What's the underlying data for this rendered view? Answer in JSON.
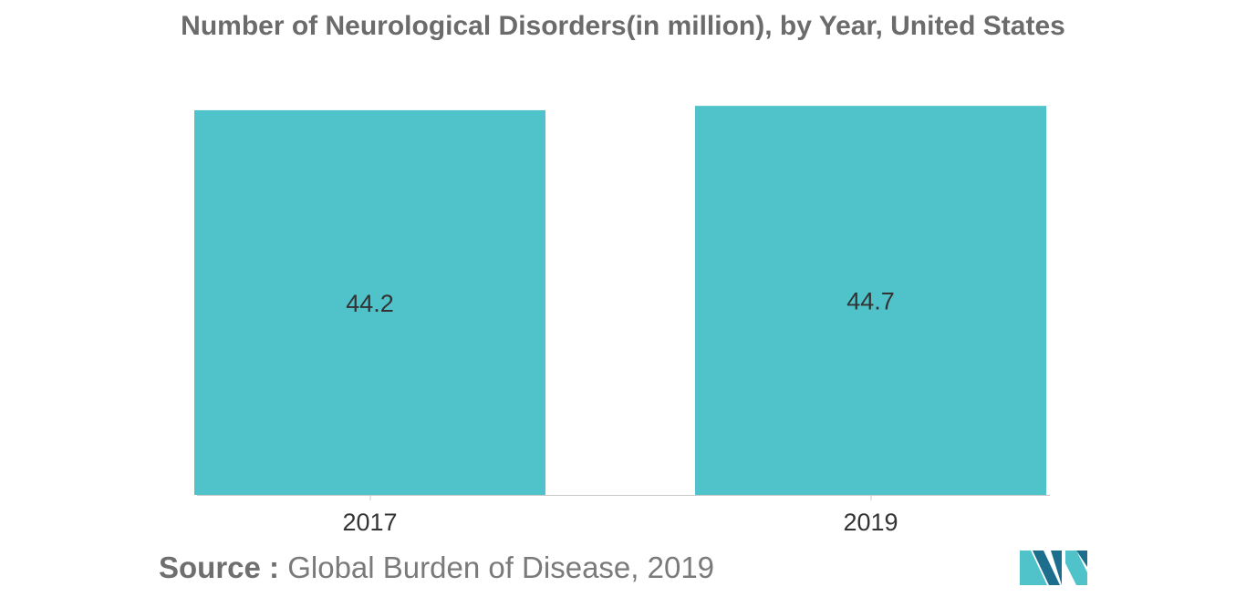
{
  "chart_data": {
    "type": "bar",
    "title": "Number of Neurological Disorders(in million), by Year, United States",
    "categories": [
      "2017",
      "2019"
    ],
    "values": [
      44.2,
      44.7
    ],
    "data_labels": [
      "44.2",
      "44.7"
    ],
    "xlabel": "",
    "ylabel": "",
    "ylim": [
      0,
      45
    ],
    "grid": false,
    "legend": "none",
    "bar_color": "#50c3ca",
    "axis_color": "#c8c8c8",
    "label_color": "#333333"
  },
  "source": {
    "label": "Source :",
    "text": "Global Burden of Disease, 2019"
  },
  "logo": {
    "icon": "mordor-intelligence-logo-icon",
    "colors": [
      "#1c6e8c",
      "#50c3ca"
    ]
  }
}
